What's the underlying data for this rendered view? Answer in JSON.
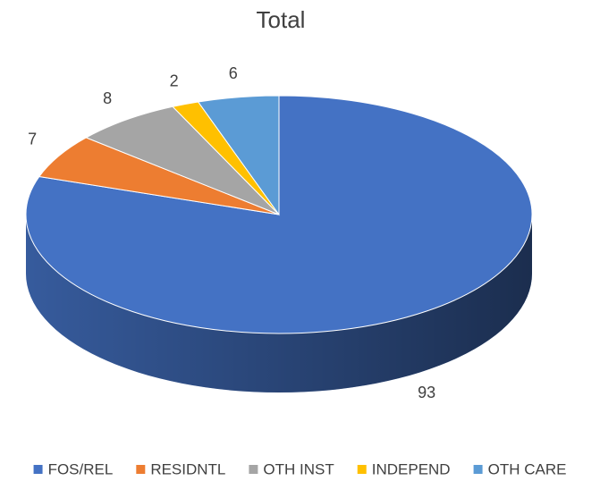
{
  "chart_data": {
    "type": "pie",
    "title": "Total",
    "categories": [
      "FOS/REL",
      "RESIDNTL",
      "OTH INST",
      "INDEPEND",
      "OTH CARE"
    ],
    "values": [
      93,
      7,
      8,
      2,
      6
    ],
    "colors": [
      "#4472c4",
      "#ed7d31",
      "#a5a5a5",
      "#ffc000",
      "#5b9bd5"
    ],
    "legend": "bottom"
  }
}
